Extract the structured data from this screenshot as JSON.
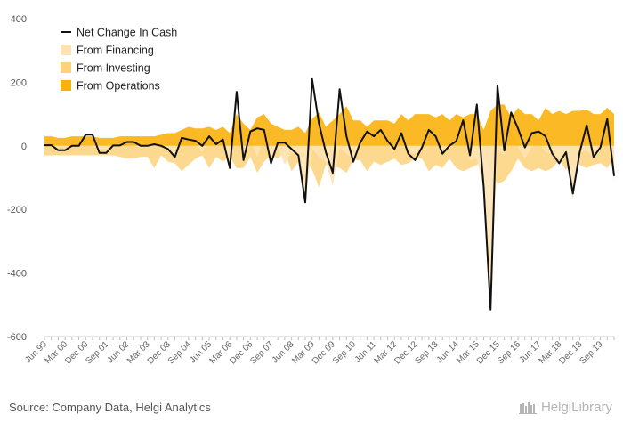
{
  "chart_data": {
    "type": "area",
    "ylim": [
      -600,
      400
    ],
    "yticks": [
      400,
      200,
      0,
      -200,
      -400,
      -600
    ],
    "x": [
      "Jun 99",
      "Sep 99",
      "Dec 99",
      "Mar 00",
      "Jun 00",
      "Sep 00",
      "Dec 00",
      "Mar 01",
      "Jun 01",
      "Sep 01",
      "Dec 01",
      "Mar 02",
      "Jun 02",
      "Sep 02",
      "Dec 02",
      "Mar 03",
      "Jun 03",
      "Sep 03",
      "Dec 03",
      "Mar 04",
      "Jun 04",
      "Sep 04",
      "Dec 04",
      "Mar 05",
      "Jun 05",
      "Sep 05",
      "Dec 05",
      "Mar 06",
      "Jun 06",
      "Sep 06",
      "Dec 06",
      "Mar 07",
      "Jun 07",
      "Sep 07",
      "Dec 07",
      "Mar 08",
      "Jun 08",
      "Sep 08",
      "Dec 08",
      "Mar 09",
      "Jun 09",
      "Sep 09",
      "Dec 09",
      "Mar 10",
      "Jun 10",
      "Sep 10",
      "Dec 10",
      "Mar 11",
      "Jun 11",
      "Sep 11",
      "Dec 11",
      "Mar 12",
      "Jun 12",
      "Sep 12",
      "Dec 12",
      "Mar 13",
      "Jun 13",
      "Sep 13",
      "Dec 13",
      "Mar 14",
      "Jun 14",
      "Sep 14",
      "Dec 14",
      "Mar 15",
      "Jun 15",
      "Sep 15",
      "Dec 15",
      "Mar 16",
      "Jun 16",
      "Sep 16",
      "Dec 16",
      "Mar 17",
      "Jun 17",
      "Sep 17",
      "Dec 17",
      "Mar 18",
      "Jun 18",
      "Sep 18",
      "Dec 18",
      "Mar 19",
      "Jun 19",
      "Sep 19",
      "Dec 19",
      "Mar 20"
    ],
    "x_tick_labels": [
      "Jun 99",
      "Mar 00",
      "Dec 00",
      "Sep 01",
      "Jun 02",
      "Mar 03",
      "Dec 03",
      "Sep 04",
      "Jun 05",
      "Mar 06",
      "Dec 06",
      "Sep 07",
      "Jun 08",
      "Mar 09",
      "Dec 09",
      "Sep 10",
      "Jun 11",
      "Mar 12",
      "Dec 12",
      "Sep 13",
      "Jun 14",
      "Mar 15",
      "Dec 15",
      "Sep 16",
      "Jun 17",
      "Mar 18",
      "Dec 18",
      "Sep 19"
    ],
    "series": [
      {
        "name": "Net Change In Cash",
        "color": "#111111",
        "values": [
          2,
          2,
          -14,
          -14,
          0,
          0,
          35,
          35,
          -22,
          -22,
          1,
          1,
          12,
          12,
          0,
          0,
          5,
          0,
          -10,
          -35,
          25,
          20,
          16,
          0,
          30,
          5,
          20,
          -70,
          170,
          -45,
          45,
          55,
          50,
          -55,
          10,
          10,
          -10,
          -30,
          -178,
          210,
          70,
          -20,
          -85,
          178,
          30,
          -50,
          10,
          45,
          30,
          50,
          15,
          -10,
          40,
          -25,
          -45,
          -5,
          50,
          30,
          -25,
          0,
          15,
          80,
          -30,
          130,
          -130,
          -515,
          190,
          -15,
          105,
          55,
          -5,
          40,
          45,
          30,
          -25,
          -55,
          -20,
          -150,
          -20,
          65,
          -35,
          -5,
          85,
          -95
        ]
      },
      {
        "name": "From Financing",
        "color": "#fde3b4",
        "values": [
          0,
          0,
          -5,
          -5,
          0,
          0,
          0,
          0,
          -10,
          -10,
          0,
          0,
          0,
          0,
          -5,
          -5,
          0,
          0,
          -10,
          -30,
          20,
          15,
          10,
          -20,
          25,
          0,
          10,
          -55,
          90,
          -30,
          20,
          -35,
          30,
          -40,
          -5,
          -60,
          -20,
          -40,
          -165,
          -10,
          -35,
          -50,
          -125,
          -5,
          -25,
          -40,
          -5,
          20,
          10,
          70,
          5,
          -10,
          20,
          -20,
          -25,
          -5,
          40,
          20,
          -25,
          -5,
          5,
          40,
          -45,
          -40,
          -135,
          -500,
          -10,
          -30,
          60,
          -5,
          -40,
          -5,
          15,
          -20,
          -25,
          -40,
          -30,
          -170,
          -20,
          -15,
          -35,
          -10,
          70,
          -115
        ]
      },
      {
        "name": "From Investing",
        "color": "#fcd27a",
        "values": [
          -30,
          -30,
          -30,
          -30,
          -30,
          -30,
          -30,
          -30,
          -30,
          -30,
          -30,
          -35,
          -40,
          -40,
          -35,
          -35,
          -70,
          -30,
          -50,
          -55,
          -80,
          -60,
          -40,
          -30,
          -70,
          -35,
          -50,
          -35,
          -70,
          -70,
          -35,
          -85,
          -50,
          -30,
          -40,
          -20,
          -80,
          -50,
          -45,
          -75,
          -130,
          -60,
          -65,
          -70,
          -85,
          -45,
          -45,
          -80,
          -50,
          -60,
          -50,
          -40,
          -60,
          -55,
          -40,
          -40,
          -80,
          -60,
          -70,
          -40,
          -70,
          -80,
          -70,
          -60,
          -35,
          -75,
          -120,
          -110,
          -80,
          -40,
          -70,
          -80,
          -70,
          -80,
          -70,
          -45,
          -75,
          -60,
          -60,
          -70,
          -60,
          -55,
          -70,
          -40
        ]
      },
      {
        "name": "From Operations",
        "color": "#f9b10d",
        "values": [
          30,
          30,
          25,
          25,
          30,
          30,
          30,
          30,
          25,
          25,
          25,
          30,
          30,
          30,
          30,
          30,
          30,
          35,
          40,
          40,
          50,
          60,
          55,
          55,
          60,
          50,
          60,
          40,
          100,
          70,
          50,
          90,
          100,
          70,
          60,
          50,
          50,
          60,
          40,
          85,
          105,
          60,
          80,
          100,
          125,
          80,
          80,
          60,
          80,
          80,
          80,
          70,
          100,
          80,
          100,
          100,
          100,
          90,
          100,
          80,
          100,
          90,
          100,
          100,
          50,
          110,
          130,
          130,
          90,
          120,
          100,
          100,
          80,
          120,
          100,
          110,
          100,
          110,
          110,
          115,
          100,
          100,
          120,
          100
        ]
      }
    ],
    "source": "Source: Company Data, Helgi Analytics",
    "brand": "HelgiLibrary",
    "background": "#ffffff",
    "gridlines": false
  }
}
